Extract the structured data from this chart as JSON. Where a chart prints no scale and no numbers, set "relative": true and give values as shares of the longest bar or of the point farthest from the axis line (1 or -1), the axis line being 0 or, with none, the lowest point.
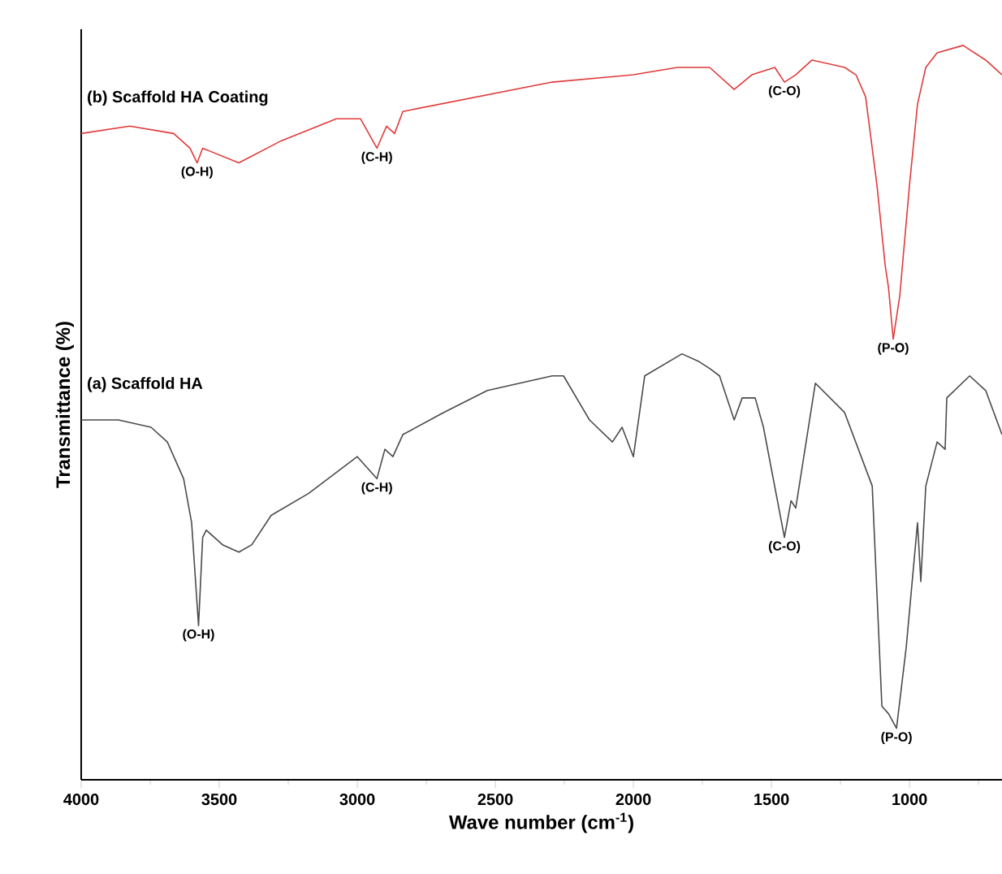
{
  "chart_data": {
    "type": "line",
    "relative": true,
    "xlabel": "Wave number (cm$^{-1}$)",
    "ylabel": "Transmittance (%)",
    "xlim": [
      4000,
      665
    ],
    "xticks": [
      4000,
      {
        "value": 3750,
        "label": null
      },
      3500,
      {
        "value": 3250,
        "label": null
      },
      3000,
      {
        "value": 2750,
        "label": null
      },
      2500,
      {
        "value": 2250,
        "label": null
      },
      2000,
      {
        "value": 1750,
        "label": null
      },
      1500,
      {
        "value": 1250,
        "label": null
      },
      1000,
      {
        "value": 750,
        "label": null
      }
    ],
    "series": [
      {
        "name": "(b) Scaffold HA Coating",
        "color": "#e03a3a",
        "x": [
          4000,
          3824,
          3665,
          3606,
          3580,
          3560,
          3429,
          3276,
          3076,
          2988,
          2929,
          2894,
          2865,
          2835,
          2294,
          2000,
          1841,
          1724,
          1635,
          1571,
          1488,
          1453,
          1412,
          1353,
          1235,
          1194,
          1159,
          1118,
          1088,
          1076,
          1059,
          1035,
          1000,
          971,
          959,
          941,
          900,
          806,
          724,
          665
        ],
        "values": [
          0.88,
          0.89,
          0.88,
          0.86,
          0.84,
          0.86,
          0.84,
          0.87,
          0.9,
          0.9,
          0.86,
          0.89,
          0.88,
          0.91,
          0.95,
          0.96,
          0.97,
          0.97,
          0.94,
          0.96,
          0.97,
          0.95,
          0.96,
          0.98,
          0.97,
          0.96,
          0.93,
          0.81,
          0.7,
          0.67,
          0.6,
          0.66,
          0.81,
          0.92,
          0.94,
          0.97,
          0.99,
          1.0,
          0.98,
          0.96
        ]
      },
      {
        "name": "(a) Scaffold HA",
        "color": "#4a4a4a",
        "x": [
          4000,
          3865,
          3747,
          3688,
          3629,
          3600,
          3575,
          3560,
          3547,
          3488,
          3429,
          3382,
          3312,
          3176,
          3000,
          2929,
          2900,
          2871,
          2835,
          2688,
          2529,
          2294,
          2253,
          2159,
          2076,
          2041,
          2000,
          1959,
          1824,
          1765,
          1724,
          1688,
          1635,
          1606,
          1559,
          1529,
          1453,
          1429,
          1412,
          1341,
          1235,
          1135,
          1100,
          1076,
          1047,
          1012,
          971,
          959,
          941,
          900,
          871,
          865,
          782,
          724,
          665
        ],
        "values": [
          0.49,
          0.49,
          0.48,
          0.46,
          0.41,
          0.35,
          0.21,
          0.33,
          0.34,
          0.32,
          0.31,
          0.32,
          0.36,
          0.39,
          0.44,
          0.41,
          0.45,
          0.44,
          0.47,
          0.5,
          0.53,
          0.55,
          0.55,
          0.49,
          0.46,
          0.48,
          0.44,
          0.55,
          0.58,
          0.57,
          0.56,
          0.55,
          0.49,
          0.52,
          0.52,
          0.48,
          0.33,
          0.38,
          0.37,
          0.54,
          0.5,
          0.4,
          0.1,
          0.09,
          0.07,
          0.18,
          0.35,
          0.27,
          0.4,
          0.46,
          0.45,
          0.52,
          0.55,
          0.53,
          0.47
        ]
      }
    ],
    "annotations": [
      {
        "text": "(O-H)",
        "x": 3580,
        "y": 0.84
      },
      {
        "text": "(C-H)",
        "x": 2929,
        "y": 0.86
      },
      {
        "text": "(C-O)",
        "x": 1453,
        "y": 0.95
      },
      {
        "text": "(P-O)",
        "x": 1059,
        "y": 0.6
      },
      {
        "text": "(O-H)",
        "x": 3575,
        "y": 0.21
      },
      {
        "text": "(C-H)",
        "x": 2929,
        "y": 0.41
      },
      {
        "text": "(C-O)",
        "x": 1453,
        "y": 0.33
      },
      {
        "text": "(P-O)",
        "x": 1047,
        "y": 0.07
      }
    ]
  }
}
